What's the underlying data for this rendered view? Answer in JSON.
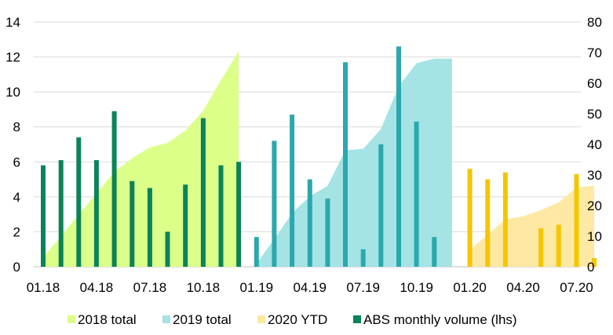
{
  "chart_data": {
    "type": "bar+area",
    "title": "",
    "left_axis": {
      "min": 0,
      "max": 14,
      "ticks": [
        0,
        2,
        4,
        6,
        8,
        10,
        12,
        14
      ]
    },
    "right_axis": {
      "min": 0,
      "max": 80,
      "ticks": [
        0,
        10,
        20,
        30,
        40,
        50,
        60,
        70,
        80
      ]
    },
    "x_tick_labels": [
      "01.18",
      "04.18",
      "07.18",
      "10.18",
      "01.19",
      "04.19",
      "07.19",
      "10.19",
      "01.20",
      "04.20",
      "07.20"
    ],
    "grid": true,
    "legend_position": "bottom",
    "series": [
      {
        "name": "2018 total",
        "kind": "area",
        "axis": "right",
        "color": "#dcff8a",
        "x": [
          "01.18",
          "02.18",
          "03.18",
          "04.18",
          "05.18",
          "06.18",
          "07.18",
          "08.18",
          "09.18",
          "10.18",
          "11.18",
          "12.18"
        ],
        "values": [
          3,
          10,
          17,
          24,
          31,
          35.5,
          39,
          40.5,
          44.5,
          51,
          61,
          70.5
        ]
      },
      {
        "name": "2019 total",
        "kind": "area",
        "axis": "right",
        "color": "#a5e3e5",
        "x": [
          "01.19",
          "02.19",
          "03.19",
          "04.19",
          "05.19",
          "06.19",
          "07.19",
          "08.19",
          "09.19",
          "10.19",
          "11.19",
          "12.19"
        ],
        "values": [
          1,
          9,
          17.5,
          23,
          26.5,
          38,
          38.5,
          45,
          59,
          66.5,
          68,
          68
        ]
      },
      {
        "name": "2020 YTD",
        "kind": "area",
        "axis": "right",
        "color": "#fde9a3",
        "x": [
          "01.20",
          "02.20",
          "03.20",
          "04.20",
          "05.20",
          "06.20",
          "07.20",
          "08.20"
        ],
        "values": [
          5.5,
          10.5,
          15.5,
          16.5,
          18.5,
          21,
          26,
          26.5
        ]
      },
      {
        "name": "ABS monthly volume (lhs)",
        "kind": "bar",
        "axis": "left",
        "color": "#0a8457",
        "x": [
          "01.18",
          "02.18",
          "03.18",
          "04.18",
          "05.18",
          "06.18",
          "07.18",
          "08.18",
          "09.18",
          "10.18",
          "11.18",
          "12.18",
          "01.19",
          "02.19",
          "03.19",
          "04.19",
          "05.19",
          "06.19",
          "07.19",
          "08.19",
          "09.19",
          "10.19",
          "11.19",
          "12.19",
          "01.20",
          "02.20",
          "03.20",
          "04.20",
          "05.20",
          "06.20",
          "07.20",
          "08.20"
        ],
        "values": [
          5.8,
          6.1,
          7.4,
          6.1,
          8.9,
          4.9,
          4.5,
          2.0,
          4.7,
          8.5,
          5.8,
          6.0,
          1.7,
          7.2,
          8.7,
          5.0,
          3.9,
          11.7,
          1.0,
          7.0,
          12.6,
          8.3,
          1.7,
          null,
          5.6,
          5.0,
          5.4,
          null,
          2.2,
          2.4,
          5.3,
          0.5
        ],
        "bar_colors_by_year": {
          "2018": "#0a8457",
          "2019": "#2ba8ad",
          "2020": "#f5c600"
        }
      }
    ]
  }
}
